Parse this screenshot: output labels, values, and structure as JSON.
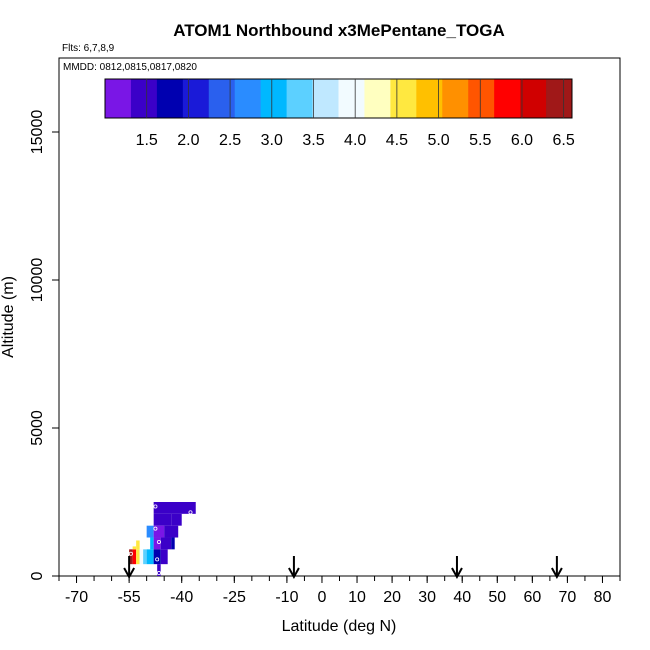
{
  "chart_data": {
    "type": "heatmap",
    "title": "ATOM1 Northbound x3MePentane_TOGA",
    "flights_label": "Flts: 6,7,8,9",
    "dates_label": "MMDD: 0812,0815,0817,0820",
    "xlabel": "Latitude (deg N)",
    "ylabel": "Altitude (m)",
    "xlim": [
      -75,
      85
    ],
    "ylim": [
      0,
      17500
    ],
    "x_ticks": [
      -70,
      -55,
      -40,
      -25,
      -10,
      0,
      10,
      20,
      30,
      40,
      50,
      60,
      70,
      80
    ],
    "x_tick_labels": [
      "-70",
      "-55",
      "-40",
      "-25",
      "-10",
      "0",
      "10",
      "20",
      "30",
      "40",
      "50",
      "60",
      "70",
      "80"
    ],
    "x_minor_step": 5,
    "y_ticks": [
      0,
      5000,
      10000,
      15000
    ],
    "y_tick_labels": [
      "0",
      "5000",
      "10000",
      "15000"
    ],
    "colorbar": {
      "range": [
        1.0,
        6.6
      ],
      "tick_values": [
        1.5,
        2.0,
        2.5,
        3.0,
        3.5,
        4.0,
        4.5,
        5.0,
        5.5,
        6.0,
        6.5
      ],
      "tick_labels": [
        "1.5",
        "2.0",
        "2.5",
        "3.0",
        "3.5",
        "4.0",
        "4.5",
        "5.0",
        "5.5",
        "6.0",
        "6.5"
      ],
      "colors": [
        "#7a16e6",
        "#3b00c8",
        "#0000b0",
        "#1a1ad8",
        "#2a60ee",
        "#2a8cff",
        "#00b8ff",
        "#5cd0ff",
        "#bfe8ff",
        "#f2fbff",
        "#ffffc0",
        "#ffe840",
        "#ffc000",
        "#ff9000",
        "#ff5500",
        "#ff0000",
        "#d00000",
        "#a01818"
      ]
    },
    "cells": [
      {
        "lat0": -48,
        "lat1": -36,
        "alt0": 2100,
        "alt1": 2500,
        "value": 1.4
      },
      {
        "lat0": -48,
        "lat1": -43,
        "alt0": 1700,
        "alt1": 2100,
        "value": 1.5
      },
      {
        "lat0": -43,
        "lat1": -40,
        "alt0": 1700,
        "alt1": 2100,
        "value": 1.6
      },
      {
        "lat0": -50,
        "lat1": -48,
        "alt0": 1300,
        "alt1": 1700,
        "value": 2.8
      },
      {
        "lat0": -48,
        "lat1": -45,
        "alt0": 1300,
        "alt1": 1700,
        "value": 1.3
      },
      {
        "lat0": -45,
        "lat1": -41,
        "alt0": 1300,
        "alt1": 1700,
        "value": 1.6
      },
      {
        "lat0": -49,
        "lat1": -48,
        "alt0": 900,
        "alt1": 1300,
        "value": 3.0
      },
      {
        "lat0": -48,
        "lat1": -46,
        "alt0": 900,
        "alt1": 1300,
        "value": 1.2
      },
      {
        "lat0": -46,
        "lat1": -43,
        "alt0": 900,
        "alt1": 1300,
        "value": 1.5
      },
      {
        "lat0": -43,
        "lat1": -42,
        "alt0": 900,
        "alt1": 1300,
        "value": 1.8
      },
      {
        "lat0": -55,
        "lat1": -54,
        "alt0": 400,
        "alt1": 900,
        "value": 6.3
      },
      {
        "lat0": -54,
        "lat1": -53,
        "alt0": 400,
        "alt1": 900,
        "value": 5.7
      },
      {
        "lat0": -53,
        "lat1": -52,
        "alt0": 400,
        "alt1": 900,
        "value": 4.7
      },
      {
        "lat0": -52,
        "lat1": -51,
        "alt0": 400,
        "alt1": 900,
        "value": 4.0
      },
      {
        "lat0": -51,
        "lat1": -50,
        "alt0": 400,
        "alt1": 900,
        "value": 3.4
      },
      {
        "lat0": -50,
        "lat1": -48,
        "alt0": 400,
        "alt1": 900,
        "value": 3.0
      },
      {
        "lat0": -48,
        "lat1": -46,
        "alt0": 400,
        "alt1": 900,
        "value": 1.9
      },
      {
        "lat0": -46,
        "lat1": -44,
        "alt0": 400,
        "alt1": 900,
        "value": 1.4
      },
      {
        "lat0": -54,
        "lat1": -53,
        "alt0": 900,
        "alt1": 1000,
        "value": 4.7
      },
      {
        "lat0": -47,
        "lat1": -46,
        "alt0": 0,
        "alt1": 400,
        "value": 1.6
      },
      {
        "lat0": -53,
        "lat1": -52,
        "alt0": 900,
        "alt1": 1200,
        "value": 4.6
      }
    ],
    "sample_points": [
      {
        "lat": -47.5,
        "alt": 2350
      },
      {
        "lat": -37.5,
        "alt": 2150
      },
      {
        "lat": -47.5,
        "alt": 1600
      },
      {
        "lat": -46.5,
        "alt": 1150
      },
      {
        "lat": -54.5,
        "alt": 750
      },
      {
        "lat": -47,
        "alt": 560
      },
      {
        "lat": -46.5,
        "alt": 100
      }
    ],
    "arrow_latitudes": [
      -55,
      -8,
      38.5,
      67
    ]
  }
}
